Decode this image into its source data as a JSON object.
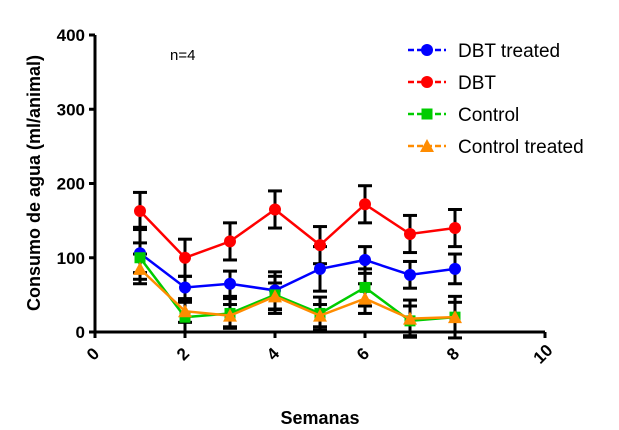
{
  "chart_data": {
    "type": "line",
    "title": "",
    "xlabel": "Semanas",
    "ylabel": "Consumo de agua (ml/animal)",
    "xlim": [
      0,
      10
    ],
    "ylim": [
      0,
      400
    ],
    "xticks": [
      "0",
      "2",
      "4",
      "6",
      "8",
      "10"
    ],
    "yticks": [
      "0",
      "100",
      "200",
      "300",
      "400"
    ],
    "annotation": "n=4",
    "grid": false,
    "legend_position": "top-right",
    "x": [
      1,
      2,
      3,
      4,
      5,
      6,
      7,
      8
    ],
    "series": [
      {
        "name": "DBT treated",
        "color": "#0000ff",
        "marker": "circle",
        "values": [
          106,
          60,
          65,
          56,
          85,
          97,
          77,
          85
        ],
        "errors": [
          35,
          15,
          17,
          25,
          30,
          18,
          18,
          20
        ]
      },
      {
        "name": "DBT",
        "color": "#ff0000",
        "marker": "circle",
        "values": [
          163,
          100,
          122,
          165,
          117,
          172,
          132,
          140
        ],
        "errors": [
          25,
          25,
          25,
          25,
          25,
          25,
          25,
          25
        ]
      },
      {
        "name": "Control",
        "color": "#00cc00",
        "marker": "square",
        "values": [
          100,
          20,
          25,
          50,
          25,
          60,
          15,
          20
        ],
        "errors": [
          20,
          20,
          20,
          25,
          22,
          25,
          20,
          20
        ]
      },
      {
        "name": "Control treated",
        "color": "#ff8c00",
        "marker": "triangle",
        "values": [
          85,
          28,
          22,
          48,
          22,
          45,
          18,
          20
        ],
        "errors": [
          20,
          15,
          15,
          18,
          15,
          20,
          25,
          28
        ]
      }
    ]
  }
}
